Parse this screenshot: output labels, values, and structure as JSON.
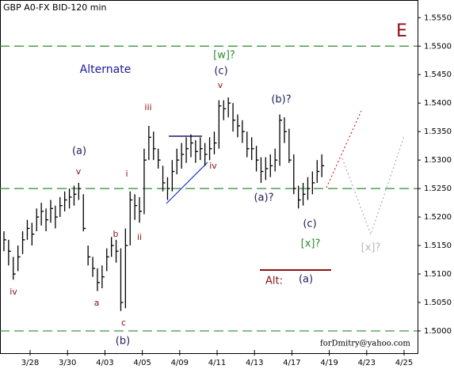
{
  "chart_data": {
    "type": "ohlc",
    "title": "GBP A0-FX BID-120 min",
    "credit": "forDmitry@yahoo.com",
    "color": "#000000",
    "level_color": "#2e8b2e",
    "xlim": [
      -0.805,
      10.36
    ],
    "ylim": [
      1.4961,
      1.5581
    ],
    "xticks": [
      {
        "value": 0,
        "label": "3/28"
      },
      {
        "value": 1,
        "label": "3/30"
      },
      {
        "value": 2,
        "label": "4/03"
      },
      {
        "value": 3,
        "label": "4/05"
      },
      {
        "value": 4,
        "label": "4/09"
      },
      {
        "value": 5,
        "label": "4/11"
      },
      {
        "value": 6,
        "label": "4/13"
      },
      {
        "value": 7,
        "label": "4/17"
      },
      {
        "value": 8,
        "label": "4/19"
      },
      {
        "value": 9,
        "label": "4/23"
      },
      {
        "value": 10,
        "label": "4/25"
      }
    ],
    "yticks": [
      {
        "value": 1.5,
        "label": "1.5000"
      },
      {
        "value": 1.505,
        "label": "1.5050"
      },
      {
        "value": 1.51,
        "label": "1.5100"
      },
      {
        "value": 1.515,
        "label": "1.5150"
      },
      {
        "value": 1.52,
        "label": "1.5200"
      },
      {
        "value": 1.525,
        "label": "1.5250"
      },
      {
        "value": 1.53,
        "label": "1.5300"
      },
      {
        "value": 1.535,
        "label": "1.5350"
      },
      {
        "value": 1.54,
        "label": "1.5400"
      },
      {
        "value": 1.545,
        "label": "1.5450"
      },
      {
        "value": 1.55,
        "label": "1.5500"
      },
      {
        "value": 1.555,
        "label": "1.5550"
      }
    ],
    "levels": [
      1.55,
      1.525,
      1.5
    ],
    "x": [
      -0.7,
      -0.575,
      -0.45,
      -0.325,
      -0.2,
      -0.075,
      0.05,
      0.175,
      0.3,
      0.425,
      0.55,
      0.675,
      0.8,
      0.925,
      1.05,
      1.175,
      1.3,
      1.425,
      1.55,
      1.675,
      1.8,
      1.925,
      2.05,
      2.175,
      2.3,
      2.425,
      2.55,
      2.675,
      2.8,
      2.925,
      3.05,
      3.175,
      3.3,
      3.425,
      3.55,
      3.675,
      3.8,
      3.925,
      4.05,
      4.175,
      4.3,
      4.425,
      4.55,
      4.675,
      4.8,
      4.925,
      5.05,
      5.175,
      5.3,
      5.425,
      5.55,
      5.675,
      5.8,
      5.925,
      6.05,
      6.175,
      6.3,
      6.425,
      6.55,
      6.675,
      6.8,
      6.925,
      7.05,
      7.175,
      7.3,
      7.425,
      7.55,
      7.675,
      7.8
    ],
    "high": [
      1.5175,
      1.516,
      1.513,
      1.515,
      1.5175,
      1.5195,
      1.519,
      1.5215,
      1.5225,
      1.5215,
      1.523,
      1.522,
      1.5235,
      1.5245,
      1.525,
      1.5255,
      1.526,
      1.524,
      1.515,
      1.513,
      1.511,
      1.5115,
      1.5145,
      1.5165,
      1.516,
      1.5145,
      1.518,
      1.5245,
      1.524,
      1.5235,
      1.532,
      1.536,
      1.535,
      1.532,
      1.529,
      1.527,
      1.53,
      1.532,
      1.533,
      1.534,
      1.5345,
      1.5335,
      1.534,
      1.533,
      1.534,
      1.535,
      1.5405,
      1.5405,
      1.541,
      1.54,
      1.538,
      1.537,
      1.535,
      1.534,
      1.5325,
      1.5305,
      1.5305,
      1.531,
      1.532,
      1.538,
      1.5375,
      1.5355,
      1.531,
      1.5255,
      1.526,
      1.527,
      1.528,
      1.53,
      1.531
    ],
    "low": [
      1.514,
      1.5115,
      1.509,
      1.5105,
      1.5135,
      1.516,
      1.515,
      1.5175,
      1.5185,
      1.5175,
      1.519,
      1.518,
      1.52,
      1.521,
      1.5215,
      1.522,
      1.523,
      1.5175,
      1.5115,
      1.5095,
      1.507,
      1.5075,
      1.5105,
      1.513,
      1.512,
      1.5035,
      1.504,
      1.515,
      1.5195,
      1.519,
      1.5205,
      1.53,
      1.53,
      1.5285,
      1.5245,
      1.523,
      1.5245,
      1.5275,
      1.5285,
      1.5295,
      1.5305,
      1.5295,
      1.53,
      1.529,
      1.53,
      1.531,
      1.532,
      1.537,
      1.5375,
      1.535,
      1.534,
      1.533,
      1.5305,
      1.53,
      1.528,
      1.526,
      1.5265,
      1.527,
      1.528,
      1.529,
      1.533,
      1.5295,
      1.524,
      1.5215,
      1.522,
      1.523,
      1.524,
      1.526,
      1.527
    ],
    "close": [
      1.516,
      1.514,
      1.51,
      1.513,
      1.516,
      1.518,
      1.517,
      1.52,
      1.521,
      1.5195,
      1.5215,
      1.52,
      1.522,
      1.523,
      1.5235,
      1.524,
      1.525,
      1.518,
      1.513,
      1.511,
      1.5085,
      1.5095,
      1.513,
      1.515,
      1.514,
      1.505,
      1.515,
      1.523,
      1.522,
      1.521,
      1.53,
      1.534,
      1.532,
      1.53,
      1.526,
      1.525,
      1.528,
      1.53,
      1.531,
      1.532,
      1.533,
      1.5315,
      1.532,
      1.531,
      1.532,
      1.533,
      1.5395,
      1.539,
      1.54,
      1.537,
      1.536,
      1.535,
      1.532,
      1.532,
      1.53,
      1.528,
      1.5285,
      1.529,
      1.53,
      1.537,
      1.535,
      1.53,
      1.525,
      1.523,
      1.524,
      1.525,
      1.526,
      1.528,
      1.529
    ],
    "annotations": [
      "E",
      "Alternate",
      "[w]?",
      "(c)",
      "v",
      "(b)?",
      "iii",
      "(a)",
      "v",
      "i",
      "iv",
      "(a)?",
      "(c)",
      "[x]?",
      "b",
      "ii",
      "iv",
      "a",
      "c",
      "(b)",
      "Alt:",
      "(a)",
      "[x]?"
    ]
  }
}
